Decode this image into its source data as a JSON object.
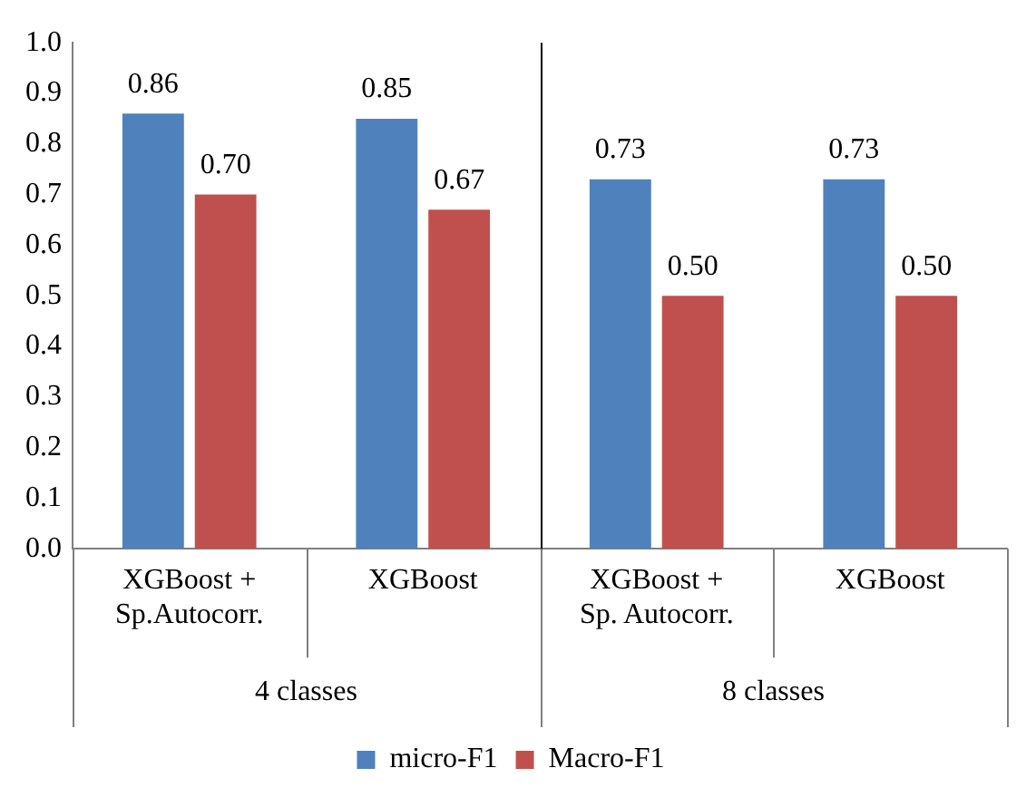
{
  "chart_data": {
    "type": "bar",
    "categories": [
      "XGBoost +\nSp.Autocorr.",
      "XGBoost",
      "XGBoost +\nSp. Autocorr.",
      "XGBoost"
    ],
    "series": [
      {
        "name": "micro-F1",
        "color": "#4f81bd",
        "values": [
          0.86,
          0.85,
          0.73,
          0.73
        ],
        "value_labels": [
          "0.86",
          "0.85",
          "0.73",
          "0.73"
        ]
      },
      {
        "name": "Macro-F1",
        "color": "#c0504d",
        "values": [
          0.7,
          0.67,
          0.5,
          0.5
        ],
        "value_labels": [
          "0.70",
          "0.67",
          "0.50",
          "0.50"
        ]
      }
    ],
    "ylim": [
      0,
      1
    ],
    "yticks": [
      {
        "value": 0,
        "label": "0.0"
      },
      {
        "value": 0.1,
        "label": "0.1"
      },
      {
        "value": 0.2,
        "label": "0.2"
      },
      {
        "value": 0.3,
        "label": "0.3"
      },
      {
        "value": 0.4,
        "label": "0.4"
      },
      {
        "value": 0.5,
        "label": "0.5"
      },
      {
        "value": 0.6,
        "label": "0.6"
      },
      {
        "value": 0.7,
        "label": "0.7"
      },
      {
        "value": 0.8,
        "label": "0.8"
      },
      {
        "value": 0.9,
        "label": "0.9"
      },
      {
        "value": 1,
        "label": "1.0"
      }
    ],
    "annotations": [
      "4 classes",
      "8 classes"
    ],
    "grid": false,
    "legend": "bottom"
  }
}
